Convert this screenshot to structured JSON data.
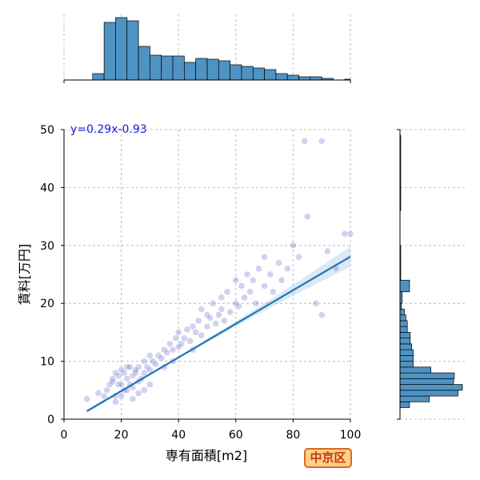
{
  "chart_data": {
    "type": "scatter",
    "title": "",
    "xlabel": "専有面積[m2]",
    "ylabel": "賃料[万円]",
    "xlim": [
      0,
      100
    ],
    "ylim": [
      0,
      50
    ],
    "xticks": [
      "0",
      "20",
      "40",
      "60",
      "80",
      "100"
    ],
    "yticks": [
      "0",
      "10",
      "20",
      "30",
      "40",
      "50"
    ],
    "grid": true,
    "regression": {
      "label": "y=0.29x-0.93",
      "slope": 0.29,
      "intercept": -0.93,
      "x_range": [
        8,
        100
      ]
    },
    "points_note_visible": false,
    "scatter": {
      "x": [
        8,
        12,
        14,
        15,
        16,
        17,
        18,
        18,
        19,
        20,
        20,
        21,
        22,
        22,
        23,
        24,
        24,
        25,
        26,
        26,
        27,
        28,
        28,
        29,
        30,
        30,
        31,
        32,
        33,
        34,
        35,
        35,
        36,
        37,
        38,
        38,
        39,
        40,
        40,
        41,
        42,
        43,
        44,
        45,
        45,
        46,
        47,
        48,
        48,
        50,
        50,
        51,
        52,
        53,
        54,
        55,
        55,
        56,
        57,
        58,
        60,
        60,
        61,
        62,
        63,
        64,
        65,
        66,
        67,
        68,
        70,
        70,
        72,
        73,
        75,
        76,
        78,
        80,
        82,
        85,
        88,
        90,
        92,
        95,
        98,
        100,
        84,
        90,
        18,
        20,
        22,
        24,
        26,
        28,
        30,
        21,
        23,
        25,
        19,
        17
      ],
      "y": [
        3.5,
        4.5,
        4,
        5,
        6,
        7,
        8,
        4,
        6,
        6,
        8.5,
        5,
        7,
        9,
        6,
        7.5,
        5.5,
        8,
        6.5,
        9,
        7,
        8,
        10,
        9,
        8.5,
        11,
        10,
        9.5,
        11,
        10.5,
        12,
        9,
        11.5,
        13,
        12,
        10,
        14,
        12.5,
        15,
        13,
        14,
        15.5,
        13.5,
        16,
        12,
        15,
        17,
        14.5,
        19,
        16,
        18,
        17.5,
        20,
        16.5,
        18,
        19,
        21,
        17,
        22,
        18.5,
        20,
        24,
        19.5,
        23,
        21,
        25,
        22,
        24,
        20,
        26,
        23,
        28,
        25,
        22,
        27,
        24,
        26,
        30,
        28,
        35,
        20,
        18,
        29,
        26,
        32,
        32,
        48,
        48,
        3,
        4,
        5,
        3.5,
        4.5,
        5,
        6,
        8,
        9,
        8.5,
        7.5,
        6.5
      ]
    },
    "marginal_x_hist": {
      "bins": [
        10,
        14,
        18,
        22,
        26,
        30,
        34,
        38,
        42,
        46,
        50,
        54,
        58,
        62,
        66,
        70,
        74,
        78,
        82,
        86,
        90,
        94,
        98,
        100
      ],
      "counts": [
        8,
        72,
        78,
        74,
        42,
        31,
        30,
        30,
        22,
        27,
        26,
        24,
        19,
        17,
        15,
        13,
        8,
        6,
        4,
        4,
        2,
        0,
        1
      ]
    },
    "marginal_y_hist": {
      "bins": [
        2,
        3,
        4,
        5,
        6,
        7,
        8,
        9,
        10,
        11,
        12,
        13,
        14,
        15,
        16,
        17,
        18,
        19,
        20,
        22,
        24,
        26,
        28,
        30,
        34,
        36,
        38,
        40,
        48,
        49
      ],
      "counts": [
        13,
        40,
        79,
        85,
        73,
        74,
        42,
        18,
        18,
        18,
        16,
        14,
        14,
        10,
        10,
        8,
        6,
        2,
        3,
        13,
        1,
        1,
        1,
        0,
        0,
        1,
        1,
        1,
        1
      ]
    },
    "ward_label": "中京区"
  }
}
